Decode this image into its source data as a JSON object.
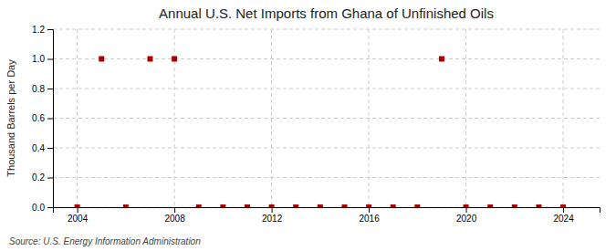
{
  "chart_data": {
    "type": "scatter",
    "title": "Annual U.S. Net Imports from Ghana of Unfinished Oils",
    "ylabel": "Thousand Barrels per Day",
    "source": "Source: U.S. Energy Information Administration",
    "x": [
      2004,
      2005,
      2006,
      2007,
      2008,
      2009,
      2010,
      2011,
      2012,
      2013,
      2014,
      2015,
      2016,
      2017,
      2018,
      2019,
      2020,
      2021,
      2022,
      2023,
      2024
    ],
    "values": [
      0,
      1,
      0,
      1,
      1,
      0,
      0,
      0,
      0,
      0,
      0,
      0,
      0,
      0,
      0,
      1,
      0,
      0,
      0,
      0,
      0
    ],
    "color": "#aa0000",
    "marker": "square",
    "xlim": [
      2003.0,
      2025.5
    ],
    "xticks": [
      2004,
      2008,
      2012,
      2016,
      2020,
      2024
    ],
    "ylim": [
      0.0,
      1.2
    ],
    "yticks": [
      {
        "value": 0.0,
        "label": "0.0"
      },
      0.2,
      0.4,
      0.6,
      0.8,
      {
        "value": 1.0,
        "label": "1.0"
      },
      1.2
    ],
    "grid": true
  }
}
